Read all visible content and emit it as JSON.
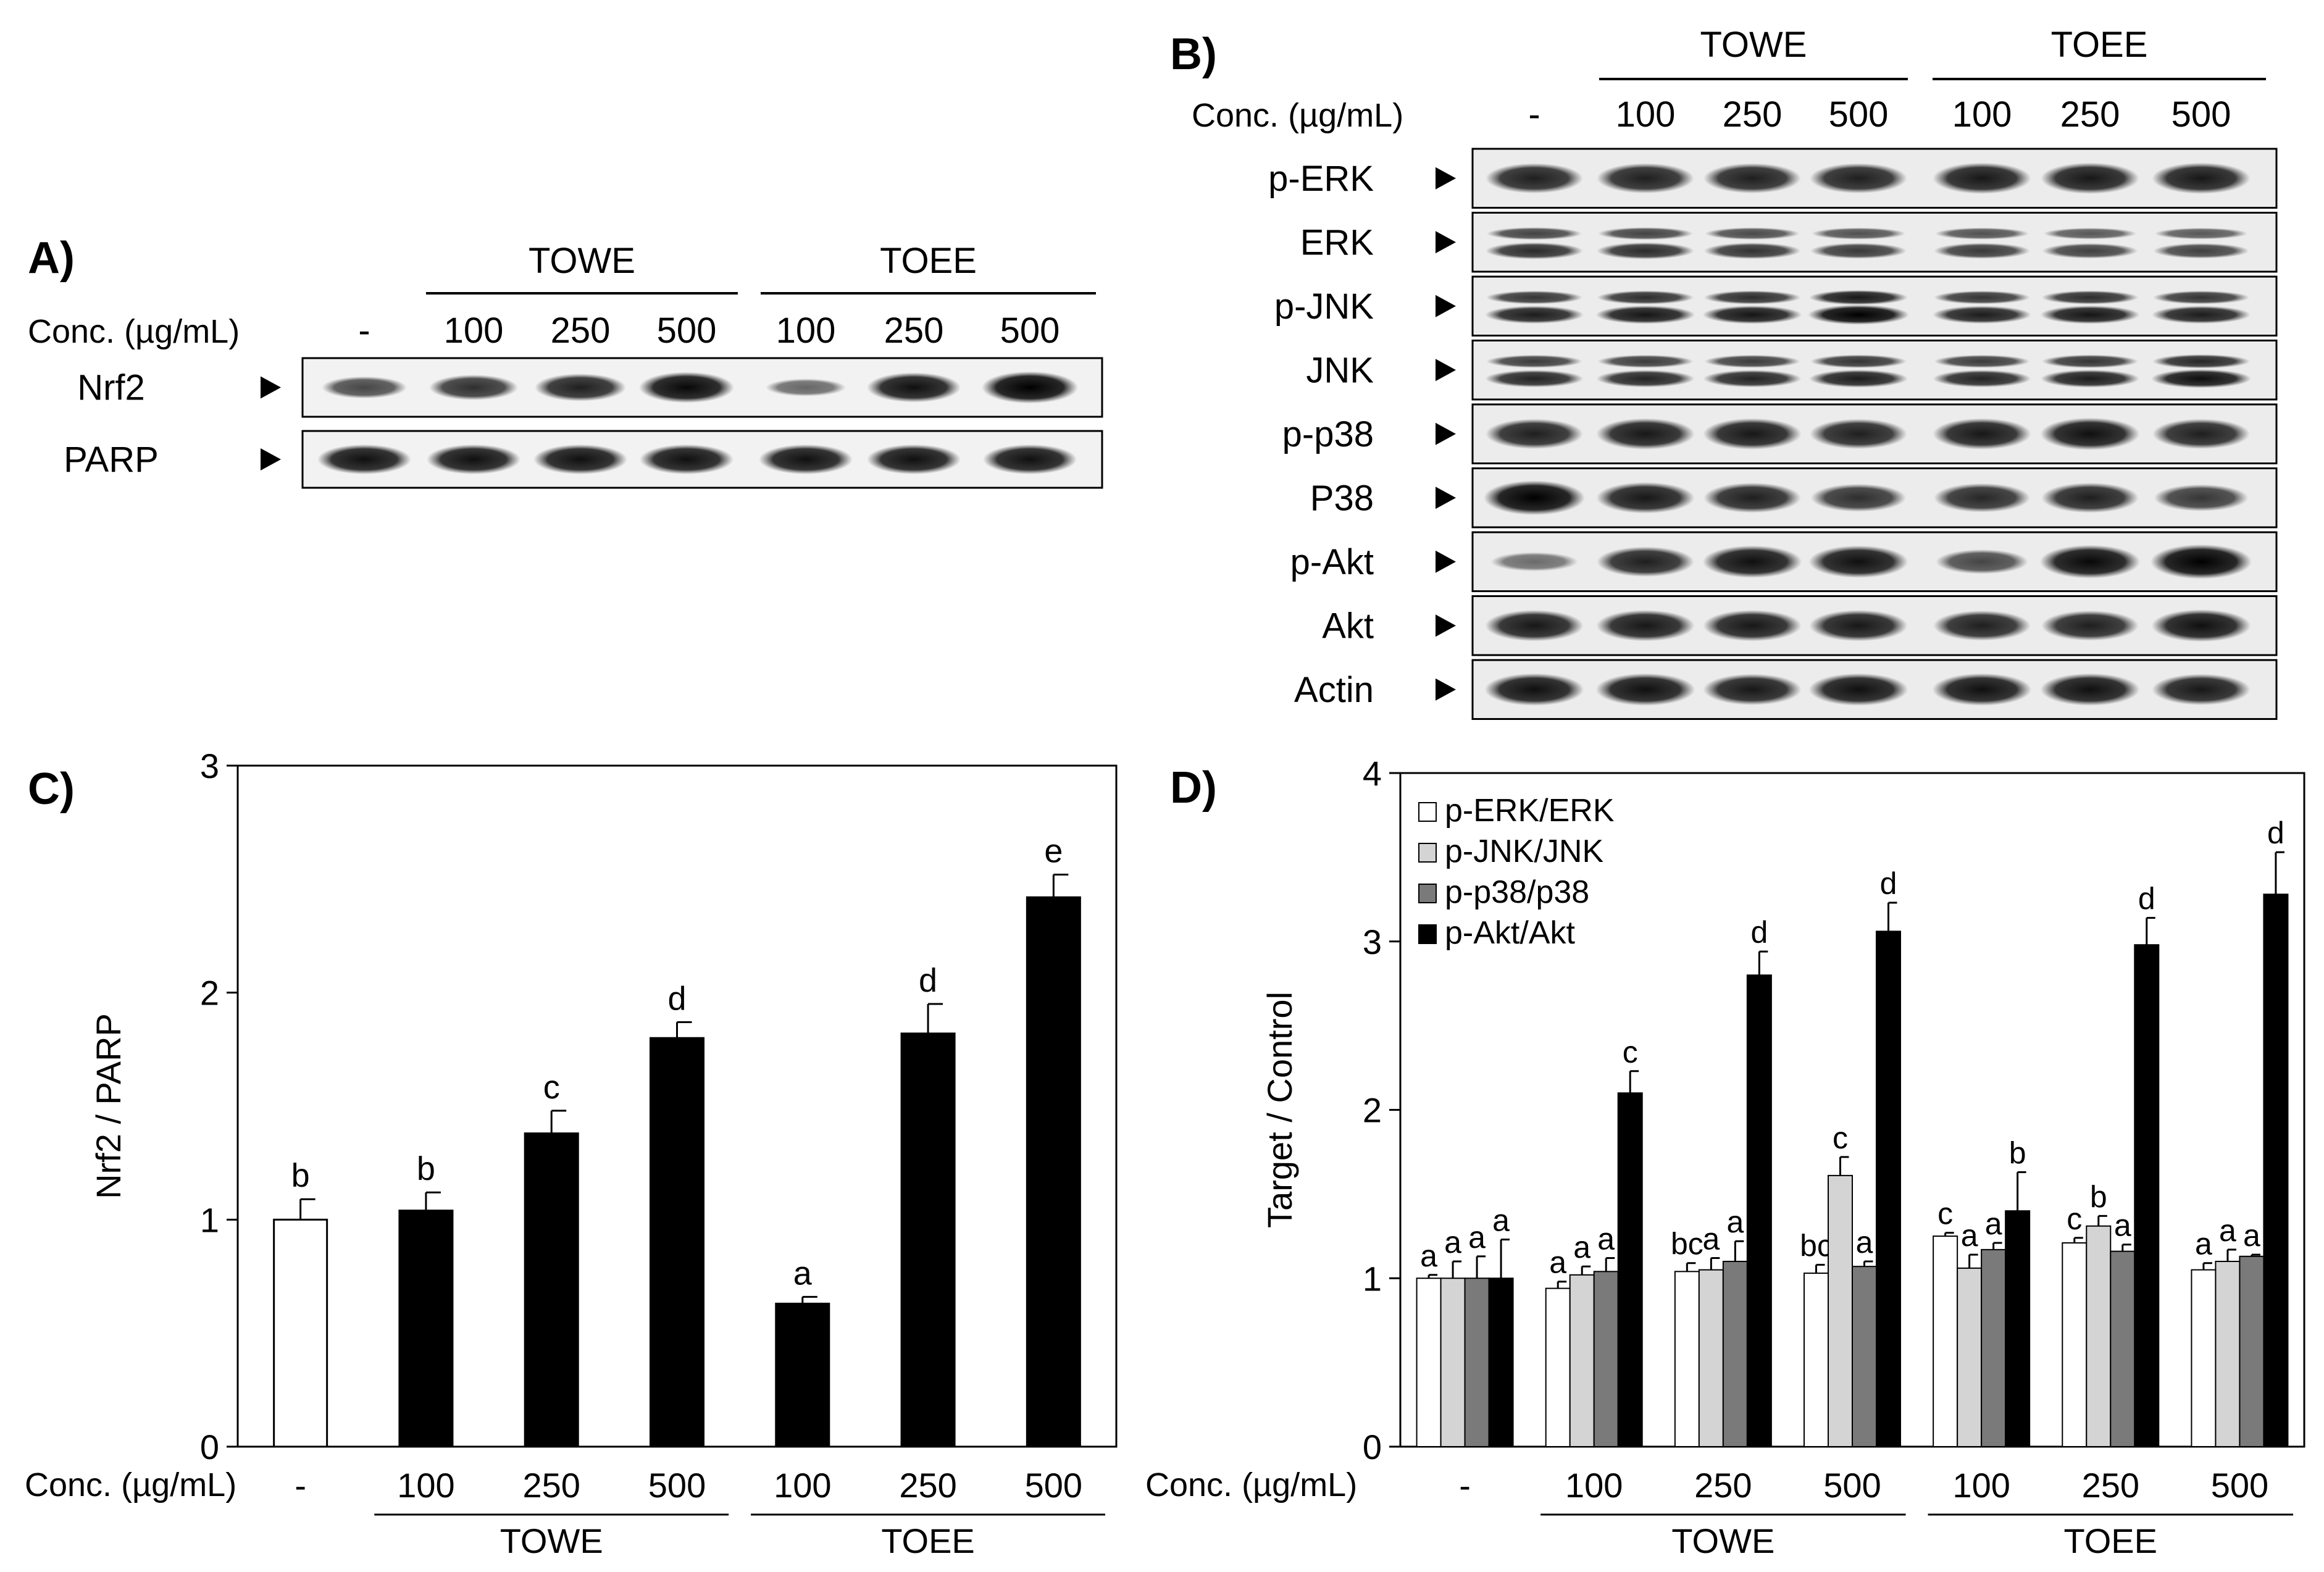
{
  "panel_a": {
    "letter": "A)",
    "conc_label": "Conc. (µg/mL)",
    "lanes": [
      "-",
      "100",
      "250",
      "500",
      "100",
      "250",
      "500"
    ],
    "groups": [
      "TOWE",
      "TOEE"
    ],
    "proteins": [
      "Nrf2",
      "PARP"
    ],
    "band_intensity": {
      "Nrf2": [
        0.55,
        0.7,
        0.8,
        0.95,
        0.35,
        0.9,
        1.0
      ],
      "PARP": [
        0.9,
        0.9,
        0.9,
        0.9,
        0.9,
        0.9,
        0.9
      ]
    }
  },
  "panel_b": {
    "letter": "B)",
    "conc_label": "Conc. (µg/mL)",
    "lanes": [
      "-",
      "100",
      "250",
      "500",
      "100",
      "250",
      "500"
    ],
    "groups": [
      "TOWE",
      "TOEE"
    ],
    "proteins": [
      "p-ERK",
      "ERK",
      "p-JNK",
      "JNK",
      "p-p38",
      "P38",
      "p-Akt",
      "Akt",
      "Actin"
    ],
    "double_band": [
      "ERK",
      "p-JNK",
      "JNK"
    ],
    "band_intensity": {
      "p-ERK": [
        0.8,
        0.8,
        0.8,
        0.8,
        0.85,
        0.85,
        0.85
      ],
      "ERK": [
        0.7,
        0.7,
        0.65,
        0.6,
        0.6,
        0.55,
        0.55
      ],
      "p-JNK": [
        0.8,
        0.85,
        0.85,
        1.0,
        0.8,
        0.85,
        0.8
      ],
      "JNK": [
        0.75,
        0.75,
        0.75,
        0.8,
        0.75,
        0.8,
        0.9
      ],
      "p-p38": [
        0.8,
        0.85,
        0.85,
        0.8,
        0.85,
        0.9,
        0.8
      ],
      "P38": [
        1.0,
        0.85,
        0.8,
        0.7,
        0.75,
        0.8,
        0.65
      ],
      "p-Akt": [
        0.3,
        0.8,
        0.9,
        0.9,
        0.55,
        0.95,
        1.0
      ],
      "Akt": [
        0.85,
        0.85,
        0.85,
        0.85,
        0.8,
        0.8,
        0.9
      ],
      "Actin": [
        0.9,
        0.9,
        0.85,
        0.9,
        0.9,
        0.9,
        0.85
      ]
    }
  },
  "chart_data": [
    {
      "type": "bar",
      "panel": "C)",
      "ylabel": "Nrf2 / PARP",
      "ylim": [
        0,
        3
      ],
      "yticks": [
        0,
        1,
        2,
        3
      ],
      "conc_label": "Conc. (µg/mL)",
      "categories": [
        "-",
        "100",
        "250",
        "500",
        "100",
        "250",
        "500"
      ],
      "groups": [
        {
          "name": "TOWE",
          "from": 1,
          "to": 3
        },
        {
          "name": "TOEE",
          "from": 4,
          "to": 6
        }
      ],
      "values": [
        1.0,
        1.04,
        1.38,
        1.8,
        0.63,
        1.82,
        2.42
      ],
      "errors": [
        0.09,
        0.08,
        0.1,
        0.07,
        0.03,
        0.13,
        0.1
      ],
      "labels": [
        "b",
        "b",
        "c",
        "d",
        "a",
        "d",
        "e"
      ],
      "colors": [
        "#ffffff",
        "#000000",
        "#000000",
        "#000000",
        "#000000",
        "#000000",
        "#000000"
      ]
    },
    {
      "type": "bar",
      "panel": "D)",
      "ylabel": "Target / Control",
      "ylim": [
        0,
        4
      ],
      "yticks": [
        0,
        1,
        2,
        3,
        4
      ],
      "conc_label": "Conc. (µg/mL)",
      "categories": [
        "-",
        "100",
        "250",
        "500",
        "100",
        "250",
        "500"
      ],
      "groups": [
        {
          "name": "TOWE",
          "from": 1,
          "to": 3
        },
        {
          "name": "TOEE",
          "from": 4,
          "to": 6
        }
      ],
      "legend_position": "top-left",
      "series": [
        {
          "name": "p-ERK/ERK",
          "color": "#ffffff",
          "values": [
            1.0,
            0.94,
            1.04,
            1.03,
            1.25,
            1.21,
            1.05
          ],
          "errors": [
            0.02,
            0.04,
            0.05,
            0.05,
            0.02,
            0.03,
            0.04
          ],
          "labels": [
            "a",
            "a",
            "bc",
            "bc",
            "c",
            "c",
            "a"
          ]
        },
        {
          "name": "p-JNK/JNK",
          "color": "#d4d4d4",
          "values": [
            1.0,
            1.02,
            1.05,
            1.61,
            1.06,
            1.31,
            1.1
          ],
          "errors": [
            0.1,
            0.05,
            0.07,
            0.11,
            0.08,
            0.06,
            0.07
          ],
          "labels": [
            "a",
            "a",
            "a",
            "c",
            "a",
            "b",
            "a"
          ]
        },
        {
          "name": "p-p38/p38",
          "color": "#7a7a7a",
          "values": [
            1.0,
            1.04,
            1.1,
            1.07,
            1.17,
            1.16,
            1.13
          ],
          "errors": [
            0.13,
            0.08,
            0.12,
            0.03,
            0.04,
            0.04,
            0.01
          ],
          "labels": [
            "a",
            "a",
            "a",
            "a",
            "a",
            "a",
            "a"
          ]
        },
        {
          "name": "p-Akt/Akt",
          "color": "#000000",
          "values": [
            1.0,
            2.1,
            2.8,
            3.06,
            1.4,
            2.98,
            3.28
          ],
          "errors": [
            0.23,
            0.13,
            0.14,
            0.17,
            0.23,
            0.16,
            0.25
          ],
          "labels": [
            "a",
            "c",
            "d",
            "d",
            "b",
            "d",
            "d"
          ]
        }
      ]
    }
  ]
}
